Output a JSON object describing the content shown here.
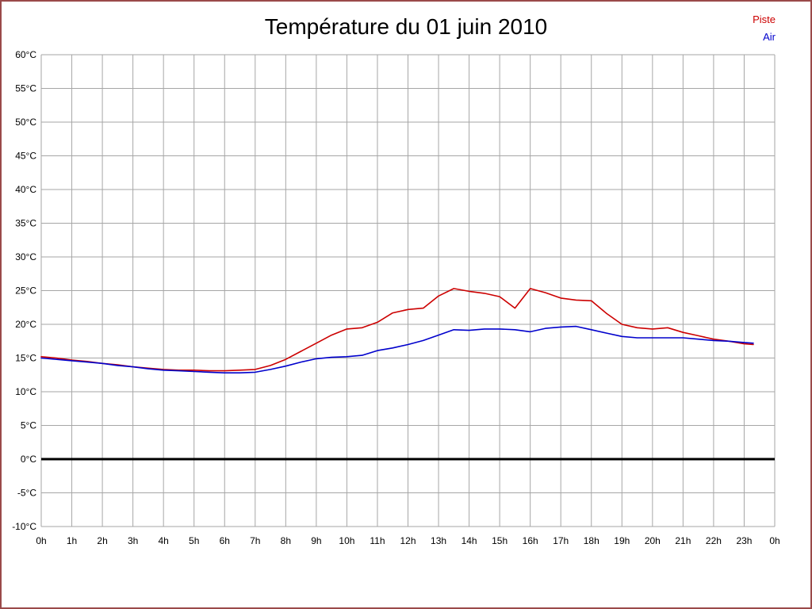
{
  "page": {
    "title": "Température du 01 juin 2010"
  },
  "legend": {
    "position": "top-right",
    "items": [
      {
        "label": "Piste",
        "color": "#cc0000"
      },
      {
        "label": "Air",
        "color": "#0000cc"
      }
    ]
  },
  "chart_data": {
    "type": "line",
    "title": "Température du 01 juin 2010",
    "xlabel": "",
    "ylabel": "",
    "x_unit": "hours",
    "xlim": [
      0,
      24
    ],
    "ylim": [
      -10,
      60
    ],
    "y_tick_step": 5,
    "grid": true,
    "grid_color": "#a6a6a6",
    "zero_line": {
      "value": 0,
      "color": "#000000",
      "width": 3
    },
    "y_tick_labels": [
      "60°C",
      "55°C",
      "50°C",
      "45°C",
      "40°C",
      "35°C",
      "30°C",
      "25°C",
      "20°C",
      "15°C",
      "10°C",
      "5°C",
      "0°C",
      "-5°C",
      "-10°C"
    ],
    "x_tick_labels": [
      "0h",
      "1h",
      "2h",
      "3h",
      "4h",
      "5h",
      "6h",
      "7h",
      "8h",
      "9h",
      "10h",
      "11h",
      "12h",
      "13h",
      "14h",
      "15h",
      "16h",
      "17h",
      "18h",
      "19h",
      "20h",
      "21h",
      "22h",
      "23h",
      "0h"
    ],
    "x": [
      0,
      0.5,
      1,
      1.5,
      2,
      2.5,
      3,
      3.5,
      4,
      4.5,
      5,
      5.5,
      6,
      6.5,
      7,
      7.5,
      8,
      8.5,
      9,
      9.5,
      10,
      10.5,
      11,
      11.5,
      12,
      12.5,
      13,
      13.5,
      14,
      14.5,
      15,
      15.5,
      16,
      16.5,
      17,
      17.5,
      18,
      18.5,
      19,
      19.5,
      20,
      20.5,
      21,
      21.5,
      22,
      22.5,
      23,
      23.3
    ],
    "series": [
      {
        "name": "Piste",
        "color": "#cc0000",
        "values": [
          15.2,
          15.0,
          14.7,
          14.5,
          14.2,
          14.0,
          13.7,
          13.5,
          13.3,
          13.2,
          13.2,
          13.1,
          13.1,
          13.2,
          13.3,
          13.9,
          14.8,
          16.0,
          17.2,
          18.4,
          19.3,
          19.5,
          20.3,
          21.7,
          22.2,
          22.4,
          24.2,
          25.3,
          24.9,
          24.6,
          24.1,
          22.4,
          25.3,
          24.7,
          23.9,
          23.6,
          23.5,
          21.6,
          20.0,
          19.5,
          19.3,
          19.5,
          18.8,
          18.3,
          17.8,
          17.5,
          17.1,
          17.0
        ]
      },
      {
        "name": "Air",
        "color": "#0000cc",
        "values": [
          15.0,
          14.8,
          14.6,
          14.4,
          14.2,
          13.9,
          13.7,
          13.4,
          13.2,
          13.1,
          13.0,
          12.9,
          12.8,
          12.8,
          12.9,
          13.3,
          13.8,
          14.4,
          14.9,
          15.1,
          15.2,
          15.4,
          16.1,
          16.5,
          17.0,
          17.6,
          18.4,
          19.2,
          19.1,
          19.3,
          19.3,
          19.2,
          18.9,
          19.4,
          19.6,
          19.7,
          19.2,
          18.7,
          18.2,
          18.0,
          18.0,
          18.0,
          18.0,
          17.8,
          17.6,
          17.5,
          17.3,
          17.2
        ]
      }
    ]
  }
}
